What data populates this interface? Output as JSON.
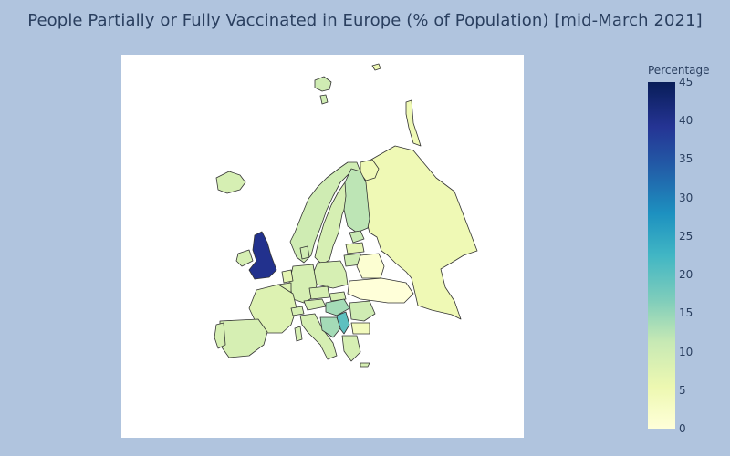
{
  "title": "People Partially or Fully Vaccinated in Europe (% of Population) [mid-March 2021]",
  "colorbar": {
    "title": "Percentage",
    "min": 0,
    "max": 45,
    "ticks": [
      "0",
      "5",
      "10",
      "15",
      "20",
      "25",
      "30",
      "35",
      "40",
      "45"
    ],
    "colorscale": [
      "#ffffd9",
      "#edf8b1",
      "#c7e9b4",
      "#7fcdbb",
      "#41b6c4",
      "#1d91c0",
      "#225ea8",
      "#253494",
      "#081d58"
    ]
  },
  "map": {
    "projection": "europe",
    "regions": [
      {
        "name": "United Kingdom",
        "value": 40
      },
      {
        "name": "Serbia",
        "value": 20
      },
      {
        "name": "Hungary",
        "value": 14
      },
      {
        "name": "Finland",
        "value": 12
      },
      {
        "name": "Estonia",
        "value": 11
      },
      {
        "name": "Lithuania",
        "value": 10
      },
      {
        "name": "Latvia",
        "value": 7
      },
      {
        "name": "Poland",
        "value": 9
      },
      {
        "name": "Germany",
        "value": 9
      },
      {
        "name": "France",
        "value": 8
      },
      {
        "name": "Spain",
        "value": 9
      },
      {
        "name": "Portugal",
        "value": 9
      },
      {
        "name": "Italy",
        "value": 9
      },
      {
        "name": "Norway",
        "value": 10
      },
      {
        "name": "Sweden",
        "value": 9
      },
      {
        "name": "Iceland",
        "value": 9
      },
      {
        "name": "Ireland",
        "value": 9
      },
      {
        "name": "Denmark",
        "value": 10
      },
      {
        "name": "Russia",
        "value": 5
      },
      {
        "name": "Belarus",
        "value": 1
      },
      {
        "name": "Ukraine",
        "value": 0
      },
      {
        "name": "Romania",
        "value": 10
      },
      {
        "name": "Bulgaria",
        "value": 4
      },
      {
        "name": "Greece",
        "value": 9
      },
      {
        "name": "Austria",
        "value": 9
      },
      {
        "name": "Czechia",
        "value": 9
      },
      {
        "name": "Slovakia",
        "value": 9
      },
      {
        "name": "Switzerland",
        "value": 9
      },
      {
        "name": "Netherlands",
        "value": 7
      },
      {
        "name": "Belgium",
        "value": 8
      }
    ]
  }
}
